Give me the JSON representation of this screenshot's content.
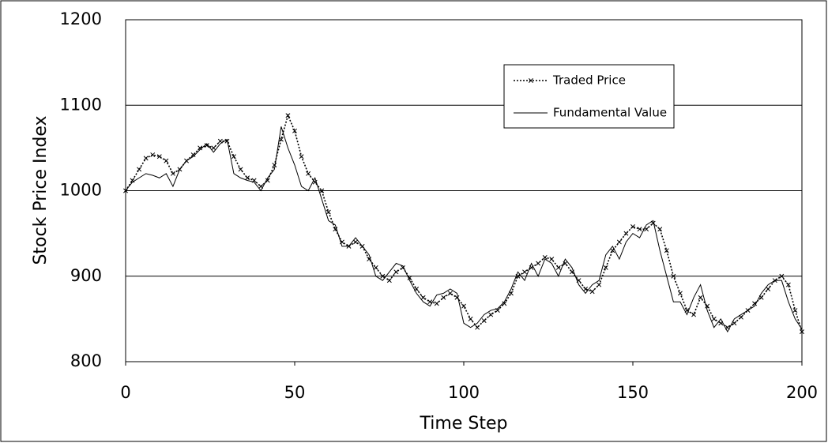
{
  "chart_data": {
    "type": "line",
    "x": [
      0,
      2,
      4,
      6,
      8,
      10,
      12,
      14,
      16,
      18,
      20,
      22,
      24,
      26,
      28,
      30,
      32,
      34,
      36,
      38,
      40,
      42,
      44,
      46,
      48,
      50,
      52,
      54,
      56,
      58,
      60,
      62,
      64,
      66,
      68,
      70,
      72,
      74,
      76,
      78,
      80,
      82,
      84,
      86,
      88,
      90,
      92,
      94,
      96,
      98,
      100,
      102,
      104,
      106,
      108,
      110,
      112,
      114,
      116,
      118,
      120,
      122,
      124,
      126,
      128,
      130,
      132,
      134,
      136,
      138,
      140,
      142,
      144,
      146,
      148,
      150,
      152,
      154,
      156,
      158,
      160,
      162,
      164,
      166,
      168,
      170,
      172,
      174,
      176,
      178,
      180,
      182,
      184,
      186,
      188,
      190,
      192,
      194,
      196,
      198,
      200
    ],
    "series": [
      {
        "name": "Traded Price",
        "color": "#000000",
        "style": "dotted",
        "marker": "x",
        "values": [
          1000,
          1012,
          1025,
          1038,
          1042,
          1040,
          1035,
          1020,
          1025,
          1035,
          1042,
          1050,
          1053,
          1050,
          1058,
          1058,
          1040,
          1025,
          1015,
          1012,
          1005,
          1012,
          1030,
          1060,
          1088,
          1070,
          1040,
          1020,
          1010,
          1000,
          975,
          955,
          940,
          935,
          940,
          935,
          920,
          910,
          900,
          895,
          905,
          910,
          898,
          885,
          875,
          870,
          868,
          875,
          880,
          875,
          865,
          850,
          840,
          848,
          855,
          860,
          868,
          880,
          900,
          905,
          910,
          915,
          922,
          920,
          910,
          915,
          905,
          895,
          885,
          882,
          890,
          910,
          930,
          940,
          950,
          958,
          955,
          955,
          962,
          955,
          930,
          900,
          880,
          860,
          855,
          875,
          865,
          850,
          845,
          840,
          845,
          852,
          860,
          868,
          875,
          885,
          895,
          900,
          890,
          860,
          835
        ]
      },
      {
        "name": "Fundamental Value",
        "color": "#000000",
        "style": "solid",
        "values": [
          1000,
          1010,
          1015,
          1020,
          1018,
          1015,
          1020,
          1005,
          1025,
          1035,
          1040,
          1048,
          1055,
          1045,
          1055,
          1060,
          1020,
          1015,
          1012,
          1010,
          1000,
          1015,
          1025,
          1075,
          1050,
          1030,
          1005,
          1000,
          1015,
          990,
          965,
          960,
          935,
          935,
          945,
          935,
          925,
          900,
          895,
          905,
          915,
          912,
          895,
          880,
          870,
          865,
          878,
          880,
          885,
          880,
          845,
          840,
          845,
          855,
          860,
          862,
          870,
          885,
          905,
          895,
          915,
          900,
          920,
          915,
          900,
          920,
          910,
          890,
          880,
          890,
          895,
          925,
          935,
          920,
          940,
          950,
          945,
          960,
          965,
          930,
          900,
          870,
          870,
          855,
          875,
          890,
          860,
          840,
          850,
          835,
          850,
          855,
          860,
          865,
          880,
          890,
          895,
          895,
          870,
          850,
          838
        ]
      }
    ],
    "xlabel": "Time Step",
    "ylabel": "Stock Price Index",
    "xlim": [
      0,
      200
    ],
    "xticks": [
      0,
      50,
      100,
      150,
      200
    ],
    "ylim": [
      800,
      1200
    ],
    "yticks": [
      800,
      900,
      1000,
      1100,
      1200
    ],
    "grid": true,
    "legend": "upper right"
  }
}
